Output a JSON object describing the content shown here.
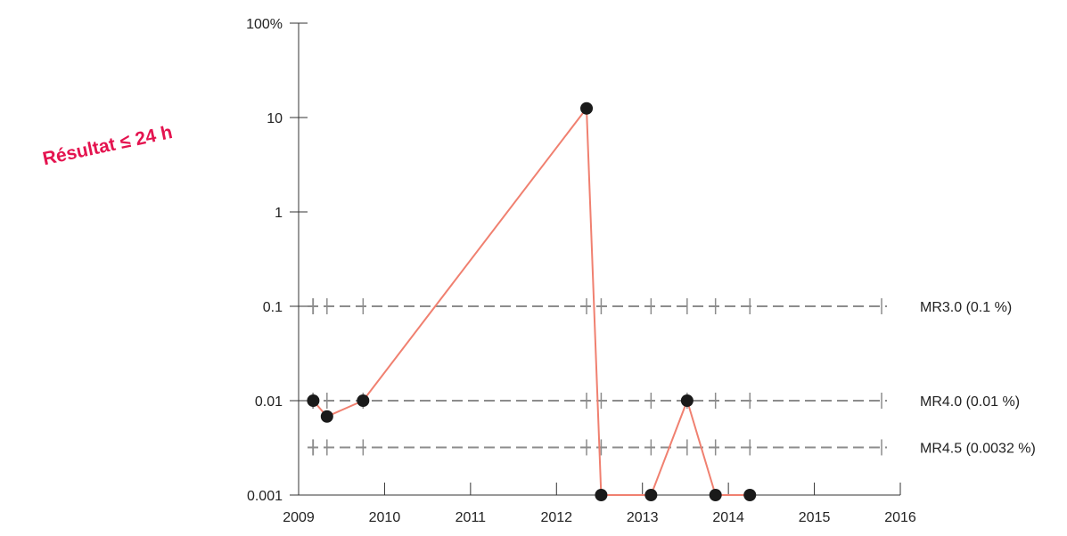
{
  "chart_data": {
    "type": "line",
    "title": "",
    "xlabel": "",
    "ylabel": "",
    "annotation": "Résultat ≤ 24 h",
    "y_scale": "log",
    "ylim": [
      0.001,
      100
    ],
    "xlim": [
      2009,
      2016
    ],
    "y_ticks": [
      {
        "value": 100,
        "label": "100%"
      },
      {
        "value": 10,
        "label": "10"
      },
      {
        "value": 1,
        "label": "1"
      },
      {
        "value": 0.1,
        "label": "0.1"
      },
      {
        "value": 0.01,
        "label": "0.01"
      },
      {
        "value": 0.001,
        "label": "0.001"
      }
    ],
    "x_ticks": [
      {
        "value": 2009,
        "label": "2009"
      },
      {
        "value": 2010,
        "label": "2010"
      },
      {
        "value": 2011,
        "label": "2011"
      },
      {
        "value": 2012,
        "label": "2012"
      },
      {
        "value": 2013,
        "label": "2013"
      },
      {
        "value": 2014,
        "label": "2014"
      },
      {
        "value": 2015,
        "label": "2015"
      },
      {
        "value": 2016,
        "label": "2016"
      }
    ],
    "series": [
      {
        "color": "#f08070",
        "marker_color": "#1a1a1a",
        "x": [
          2009.17,
          2009.33,
          2009.75,
          2012.35,
          2012.52,
          2013.1,
          2013.52,
          2013.85,
          2014.25
        ],
        "y": [
          0.01,
          0.0068,
          0.01,
          12.5,
          0.001,
          0.001,
          0.01,
          0.001,
          0.001
        ]
      }
    ],
    "reference_lines": [
      {
        "label": "MR3.0 (0.1 %)",
        "value": 0.1,
        "color": "#8c8c8c"
      },
      {
        "label": "MR4.0 (0.01 %)",
        "value": 0.01,
        "color": "#8c8c8c"
      },
      {
        "label": "MR4.5 (0.0032 %)",
        "value": 0.0032,
        "color": "#8c8c8c"
      }
    ],
    "grid": false,
    "legend": "none"
  }
}
